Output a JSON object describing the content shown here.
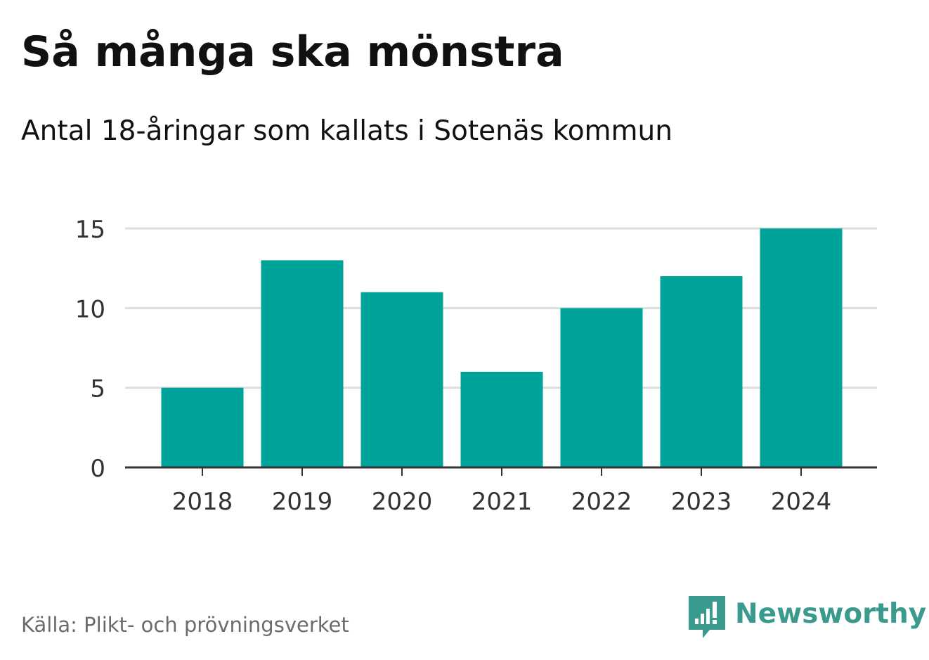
{
  "header": {
    "title": "Så många ska mönstra",
    "subtitle": "Antal 18-åringar som kallats i Sotenäs kommun"
  },
  "footer": {
    "source": "Källa: Plikt- och prövningsverket",
    "brand": "Newsworthy",
    "brand_icon": "newsworthy-logo-icon"
  },
  "colors": {
    "bar": "#00a39a",
    "grid": "#dddddd",
    "axis": "#333333",
    "text": "#333333",
    "brand": "#3a9a8d"
  },
  "chart_data": {
    "type": "bar",
    "categories": [
      "2018",
      "2019",
      "2020",
      "2021",
      "2022",
      "2023",
      "2024"
    ],
    "values": [
      5,
      13,
      11,
      6,
      10,
      12,
      15
    ],
    "ylim": [
      0,
      15
    ],
    "yticks": [
      "0",
      "5",
      "10",
      "15"
    ],
    "grid": true,
    "legend": "none"
  }
}
